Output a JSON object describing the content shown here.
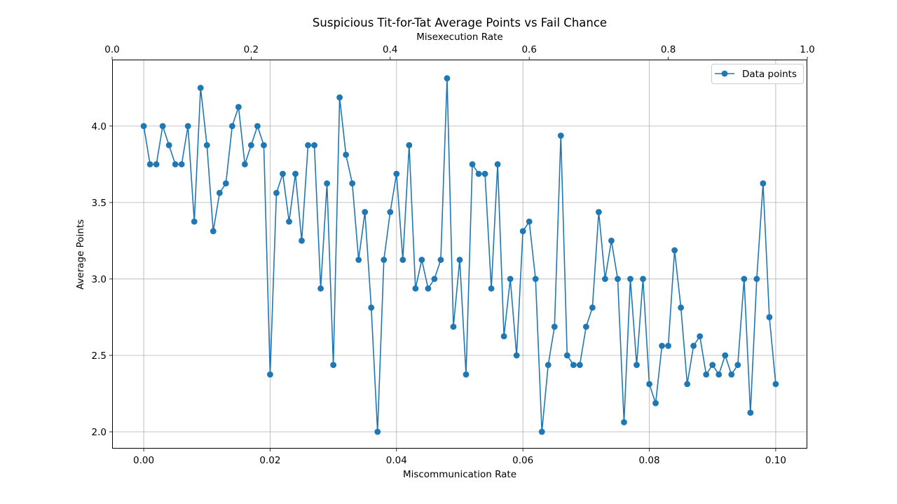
{
  "chart_data": {
    "type": "line",
    "title": "Suspicious Tit-for-Tat Average Points vs Fail Chance",
    "xlabel": "Miscommunication Rate",
    "ylabel": "Average Points",
    "top_xlabel": "Misexecution Rate",
    "xlim": [
      -0.005,
      0.105
    ],
    "ylim": [
      1.89,
      4.435
    ],
    "top_xlim": [
      0.0,
      1.0
    ],
    "xticks": [
      0.0,
      0.02,
      0.04,
      0.06,
      0.08,
      0.1
    ],
    "xtick_labels": [
      "0.00",
      "0.02",
      "0.04",
      "0.06",
      "0.08",
      "0.10"
    ],
    "yticks": [
      2.0,
      2.5,
      3.0,
      3.5,
      4.0
    ],
    "ytick_labels": [
      "2.0",
      "2.5",
      "3.0",
      "3.5",
      "4.0"
    ],
    "top_xticks": [
      0.0,
      0.2,
      0.4,
      0.6,
      0.8,
      1.0
    ],
    "top_xtick_labels": [
      "0.0",
      "0.2",
      "0.4",
      "0.6",
      "0.8",
      "1.0"
    ],
    "grid": true,
    "legend_position": "top-right",
    "color": "#1f77b4",
    "series": [
      {
        "name": "Data points",
        "x": [
          0.0,
          0.001,
          0.002,
          0.003,
          0.004,
          0.005,
          0.006,
          0.007,
          0.008,
          0.009,
          0.01,
          0.011,
          0.012,
          0.013,
          0.014,
          0.015,
          0.016,
          0.017,
          0.018,
          0.019,
          0.02,
          0.021,
          0.022,
          0.023,
          0.024,
          0.025,
          0.026,
          0.027,
          0.028,
          0.029,
          0.03,
          0.031,
          0.032,
          0.033,
          0.034,
          0.035,
          0.036,
          0.037,
          0.038,
          0.039,
          0.04,
          0.041,
          0.042,
          0.043,
          0.044,
          0.045,
          0.046,
          0.047,
          0.048,
          0.049,
          0.05,
          0.051,
          0.052,
          0.053,
          0.054,
          0.055,
          0.056,
          0.057,
          0.058,
          0.059,
          0.06,
          0.061,
          0.062,
          0.063,
          0.064,
          0.065,
          0.066,
          0.067,
          0.068,
          0.069,
          0.07,
          0.071,
          0.072,
          0.073,
          0.074,
          0.075,
          0.076,
          0.077,
          0.078,
          0.079,
          0.08,
          0.081,
          0.082,
          0.083,
          0.084,
          0.085,
          0.086,
          0.087,
          0.088,
          0.089,
          0.09,
          0.091,
          0.092,
          0.093,
          0.094,
          0.095,
          0.096,
          0.097,
          0.098,
          0.099,
          0.1
        ],
        "y": [
          4.0,
          3.75,
          3.75,
          4.0,
          3.875,
          3.75,
          3.75,
          4.0,
          3.375,
          4.25,
          3.875,
          3.3125,
          3.5625,
          3.625,
          4.0,
          4.125,
          3.75,
          3.875,
          4.0,
          3.875,
          2.375,
          3.5625,
          3.6875,
          3.375,
          3.6875,
          3.25,
          3.875,
          3.875,
          2.9375,
          3.625,
          2.4375,
          4.1875,
          3.8125,
          3.625,
          3.125,
          3.4375,
          2.8125,
          2.0,
          3.125,
          3.4375,
          3.6875,
          3.125,
          3.875,
          2.9375,
          3.125,
          2.9375,
          3.0,
          3.125,
          4.3125,
          2.6875,
          3.125,
          2.375,
          3.75,
          3.6875,
          3.6875,
          2.9375,
          3.75,
          2.625,
          3.0,
          2.5,
          3.3125,
          3.375,
          3.0,
          2.0,
          2.4375,
          2.6875,
          3.9375,
          2.5,
          2.4375,
          2.4375,
          2.6875,
          2.8125,
          3.4375,
          3.0,
          3.25,
          3.0,
          2.0625,
          3.0,
          2.4375,
          3.0,
          2.3125,
          2.1875,
          2.5625,
          2.5625,
          3.1875,
          2.8125,
          2.3125,
          2.5625,
          2.625,
          2.375,
          2.4375,
          2.375,
          2.5,
          2.375,
          2.4375,
          3.0,
          2.125,
          3.0,
          3.625,
          2.75,
          2.3125
        ]
      }
    ]
  }
}
